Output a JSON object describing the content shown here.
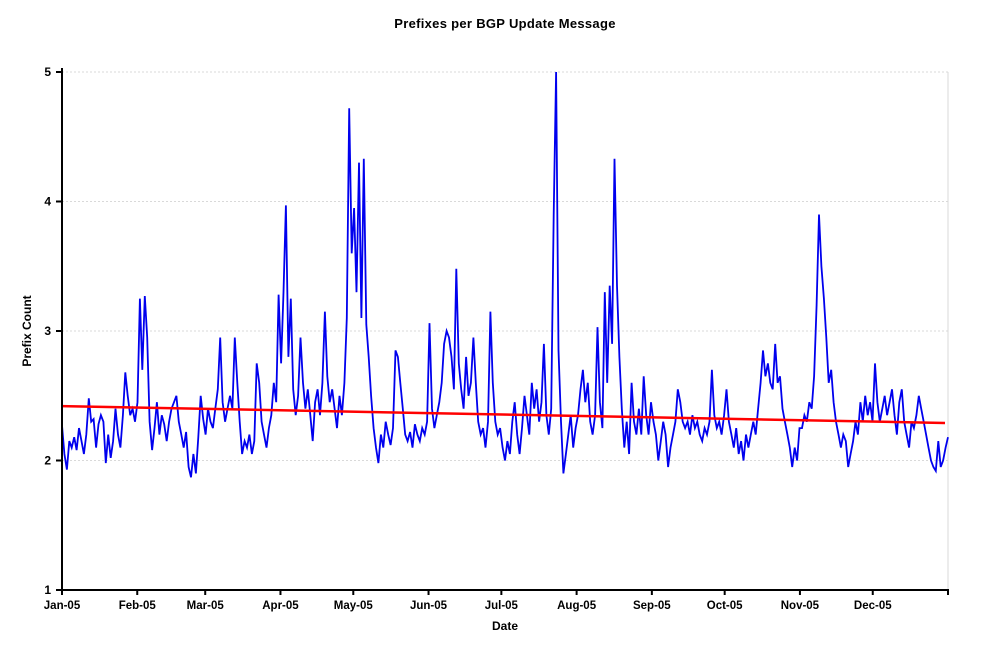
{
  "chart_data": {
    "type": "line",
    "title": "Prefixes per BGP Update Message",
    "xlabel": "Date",
    "ylabel": "Prefix Count",
    "ylim": [
      1,
      5
    ],
    "yticks": [
      1,
      2,
      3,
      4,
      5
    ],
    "y_tick_labels": [
      "1",
      "2",
      "3",
      "4",
      "5"
    ],
    "x_tick_labels": [
      "Jan-05",
      "Feb-05",
      "Mar-05",
      "Apr-05",
      "May-05",
      "Jun-05",
      "Jul-05",
      "Aug-05",
      "Sep-05",
      "Oct-05",
      "Nov-05",
      "Dec-05"
    ],
    "month_start_days": [
      0,
      31,
      59,
      90,
      120,
      151,
      181,
      212,
      243,
      273,
      304,
      334
    ],
    "days_in_year": 365,
    "grid": "horizontal-dotted",
    "legend": "none",
    "series": [
      {
        "name": "Prefixes per BGP update (daily)",
        "color": "#0000EE",
        "values": [
          2.27,
          2.05,
          1.93,
          2.15,
          2.1,
          2.18,
          2.08,
          2.25,
          2.15,
          2.05,
          2.2,
          2.48,
          2.3,
          2.32,
          2.1,
          2.28,
          2.35,
          2.3,
          1.98,
          2.2,
          2.02,
          2.15,
          2.4,
          2.2,
          2.1,
          2.35,
          2.68,
          2.5,
          2.35,
          2.4,
          2.3,
          2.45,
          3.25,
          2.7,
          3.27,
          2.95,
          2.3,
          2.08,
          2.25,
          2.45,
          2.2,
          2.35,
          2.28,
          2.15,
          2.3,
          2.4,
          2.45,
          2.5,
          2.3,
          2.2,
          2.1,
          2.22,
          1.95,
          1.87,
          2.05,
          1.9,
          2.18,
          2.5,
          2.32,
          2.2,
          2.4,
          2.3,
          2.25,
          2.4,
          2.55,
          2.95,
          2.45,
          2.3,
          2.4,
          2.5,
          2.4,
          2.95,
          2.6,
          2.3,
          2.05,
          2.15,
          2.1,
          2.2,
          2.05,
          2.15,
          2.75,
          2.6,
          2.3,
          2.2,
          2.1,
          2.25,
          2.35,
          2.6,
          2.45,
          3.28,
          2.75,
          3.3,
          3.97,
          2.8,
          3.25,
          2.55,
          2.35,
          2.5,
          2.95,
          2.6,
          2.4,
          2.55,
          2.35,
          2.15,
          2.45,
          2.55,
          2.35,
          2.6,
          3.15,
          2.65,
          2.45,
          2.55,
          2.4,
          2.25,
          2.5,
          2.35,
          2.6,
          3.1,
          4.72,
          3.6,
          3.95,
          3.3,
          4.3,
          3.1,
          4.33,
          3.05,
          2.8,
          2.5,
          2.25,
          2.1,
          1.98,
          2.2,
          2.1,
          2.3,
          2.2,
          2.12,
          2.25,
          2.85,
          2.8,
          2.6,
          2.4,
          2.2,
          2.15,
          2.22,
          2.1,
          2.28,
          2.2,
          2.15,
          2.25,
          2.2,
          2.3,
          3.06,
          2.4,
          2.25,
          2.35,
          2.45,
          2.6,
          2.9,
          3.0,
          2.95,
          2.8,
          2.55,
          3.48,
          2.75,
          2.55,
          2.4,
          2.8,
          2.5,
          2.6,
          2.95,
          2.6,
          2.3,
          2.2,
          2.25,
          2.1,
          2.3,
          3.15,
          2.6,
          2.3,
          2.2,
          2.25,
          2.1,
          2.0,
          2.15,
          2.05,
          2.3,
          2.45,
          2.2,
          2.05,
          2.25,
          2.5,
          2.35,
          2.2,
          2.6,
          2.4,
          2.55,
          2.3,
          2.45,
          2.9,
          2.35,
          2.2,
          2.4,
          3.9,
          5.0,
          2.85,
          2.3,
          1.9,
          2.05,
          2.2,
          2.35,
          2.1,
          2.25,
          2.35,
          2.55,
          2.7,
          2.45,
          2.6,
          2.3,
          2.2,
          2.35,
          3.03,
          2.45,
          2.25,
          3.3,
          2.6,
          3.35,
          2.9,
          4.33,
          3.35,
          2.8,
          2.4,
          2.1,
          2.3,
          2.05,
          2.6,
          2.3,
          2.2,
          2.4,
          2.2,
          2.65,
          2.35,
          2.2,
          2.45,
          2.3,
          2.2,
          2.0,
          2.15,
          2.3,
          2.2,
          1.95,
          2.1,
          2.2,
          2.3,
          2.55,
          2.45,
          2.3,
          2.25,
          2.3,
          2.2,
          2.35,
          2.25,
          2.3,
          2.2,
          2.15,
          2.25,
          2.2,
          2.3,
          2.7,
          2.35,
          2.25,
          2.3,
          2.2,
          2.35,
          2.55,
          2.3,
          2.2,
          2.1,
          2.25,
          2.05,
          2.15,
          2.0,
          2.2,
          2.1,
          2.2,
          2.3,
          2.2,
          2.4,
          2.6,
          2.85,
          2.65,
          2.75,
          2.6,
          2.55,
          2.9,
          2.6,
          2.65,
          2.4,
          2.3,
          2.2,
          2.1,
          1.95,
          2.1,
          2.0,
          2.25,
          2.25,
          2.35,
          2.3,
          2.45,
          2.4,
          2.65,
          3.2,
          3.9,
          3.5,
          3.25,
          2.95,
          2.6,
          2.7,
          2.45,
          2.3,
          2.2,
          2.1,
          2.2,
          2.15,
          1.95,
          2.05,
          2.15,
          2.3,
          2.2,
          2.45,
          2.3,
          2.5,
          2.35,
          2.45,
          2.3,
          2.75,
          2.45,
          2.3,
          2.4,
          2.5,
          2.35,
          2.45,
          2.55,
          2.35,
          2.2,
          2.45,
          2.55,
          2.3,
          2.2,
          2.1,
          2.3,
          2.25,
          2.35,
          2.5,
          2.4,
          2.3,
          2.2,
          2.1,
          2.0,
          1.95,
          1.92,
          2.15,
          1.95,
          2.0,
          2.1,
          2.18
        ]
      },
      {
        "name": "Linear trend",
        "color": "#FF0000",
        "trend_start": 2.42,
        "trend_end": 2.29
      }
    ]
  },
  "colors": {
    "series_blue": "#0000EE",
    "trend_red": "#FF0000",
    "gridline": "#D9D9D9",
    "axis": "#000000",
    "background": "#FFFFFF"
  }
}
